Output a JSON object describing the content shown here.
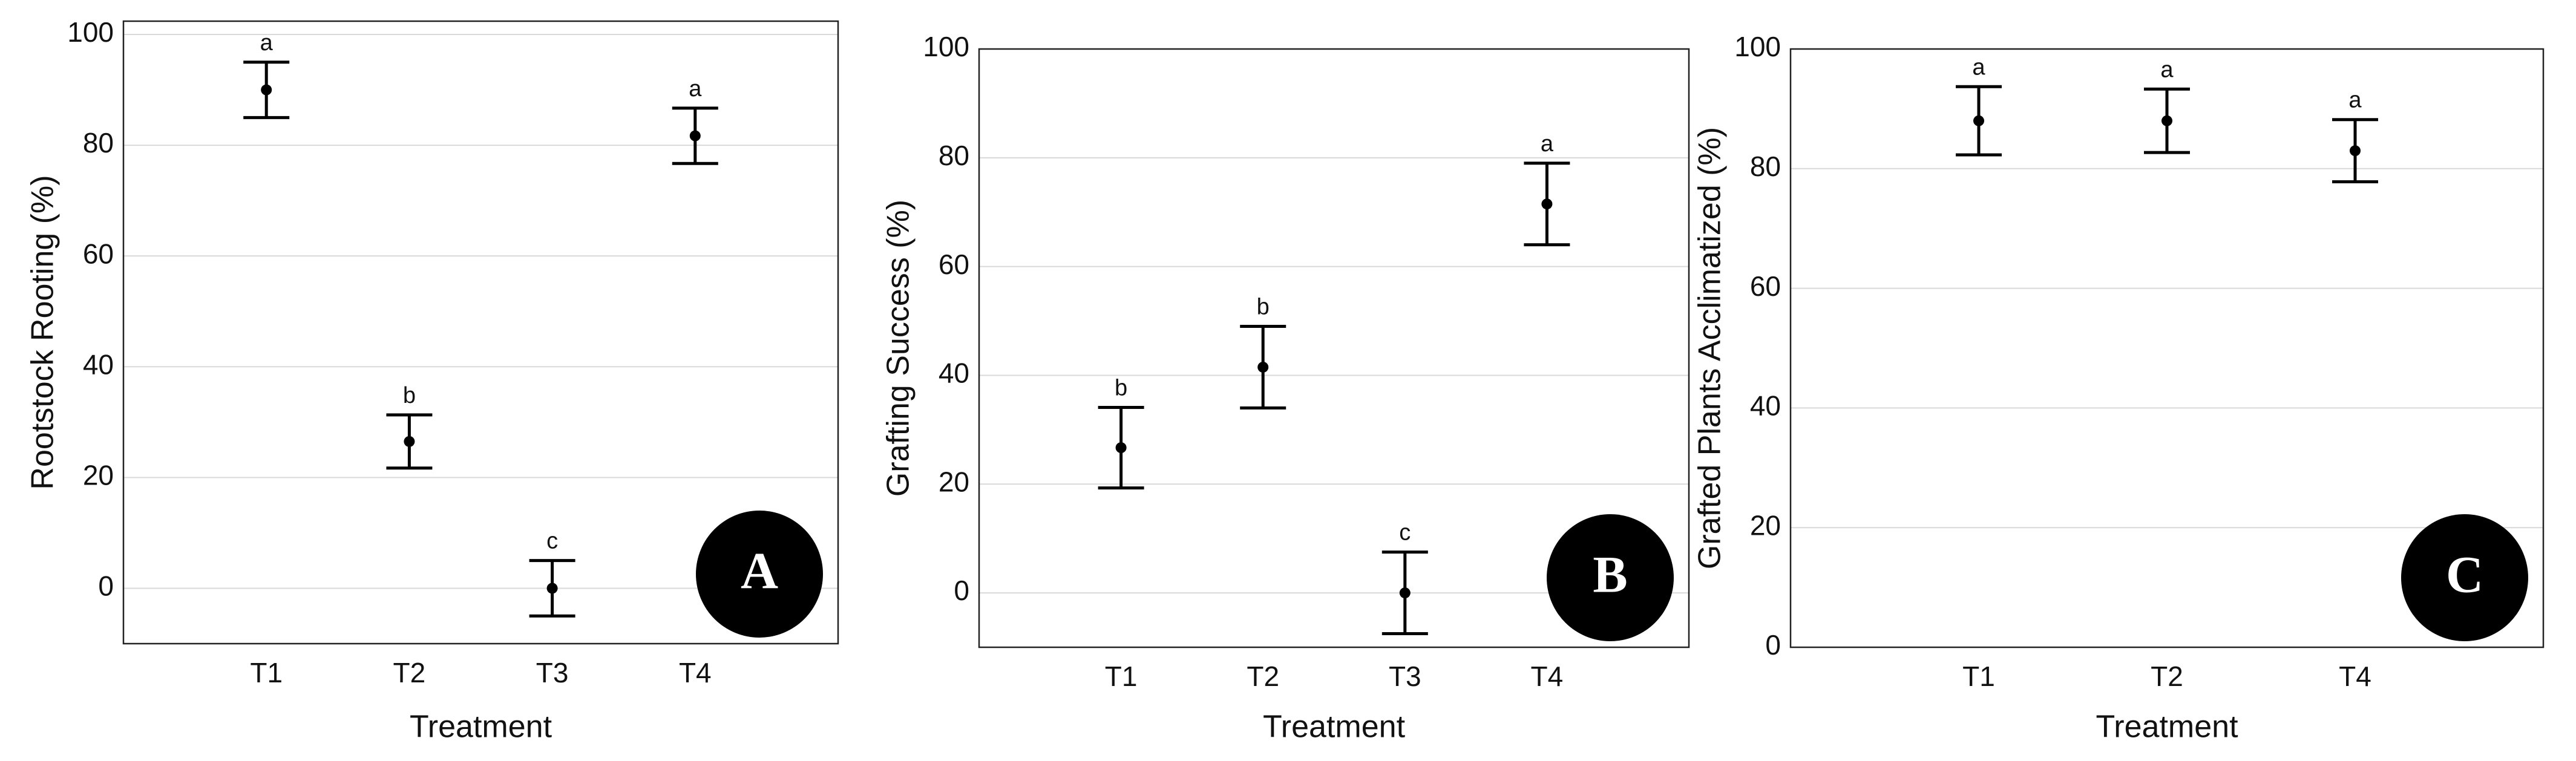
{
  "chart_data": [
    {
      "type": "errorbar",
      "panel_label": "A",
      "ylabel": "Rootstock Rooting (%)",
      "xlabel": "Treatment",
      "categories": [
        "T1",
        "T2",
        "T3",
        "T4"
      ],
      "values": [
        90,
        26.5,
        0,
        81.7
      ],
      "errors": [
        5,
        4.8,
        5,
        5
      ],
      "letters": [
        "a",
        "b",
        "c",
        "a"
      ],
      "ylim": [
        -10,
        100
      ],
      "yticks": [
        0,
        20,
        40,
        60,
        80,
        100
      ],
      "grid": true,
      "color": "#000000"
    },
    {
      "type": "errorbar",
      "panel_label": "B",
      "ylabel": "Grafting Success (%)",
      "xlabel": "Treatment",
      "categories": [
        "T1",
        "T2",
        "T3",
        "T4"
      ],
      "values": [
        26.7,
        41.5,
        0,
        71.5
      ],
      "errors": [
        7.4,
        7.5,
        7.5,
        7.5
      ],
      "letters": [
        "b",
        "b",
        "c",
        "a"
      ],
      "ylim": [
        -10,
        100
      ],
      "yticks": [
        0,
        20,
        40,
        60,
        80,
        100
      ],
      "grid": true,
      "color": "#000000"
    },
    {
      "type": "errorbar",
      "panel_label": "C",
      "ylabel": "Grafted Plants Acclimatized (%)",
      "xlabel": "Treatment",
      "categories": [
        "T1",
        "T2",
        "T4"
      ],
      "values": [
        88,
        88,
        83
      ],
      "errors": [
        5.7,
        5.3,
        5.2
      ],
      "letters": [
        "a",
        "a",
        "a"
      ],
      "ylim": [
        0,
        100
      ],
      "yticks": [
        0,
        20,
        40,
        60,
        80,
        100
      ],
      "grid": true,
      "color": "#000000"
    }
  ]
}
